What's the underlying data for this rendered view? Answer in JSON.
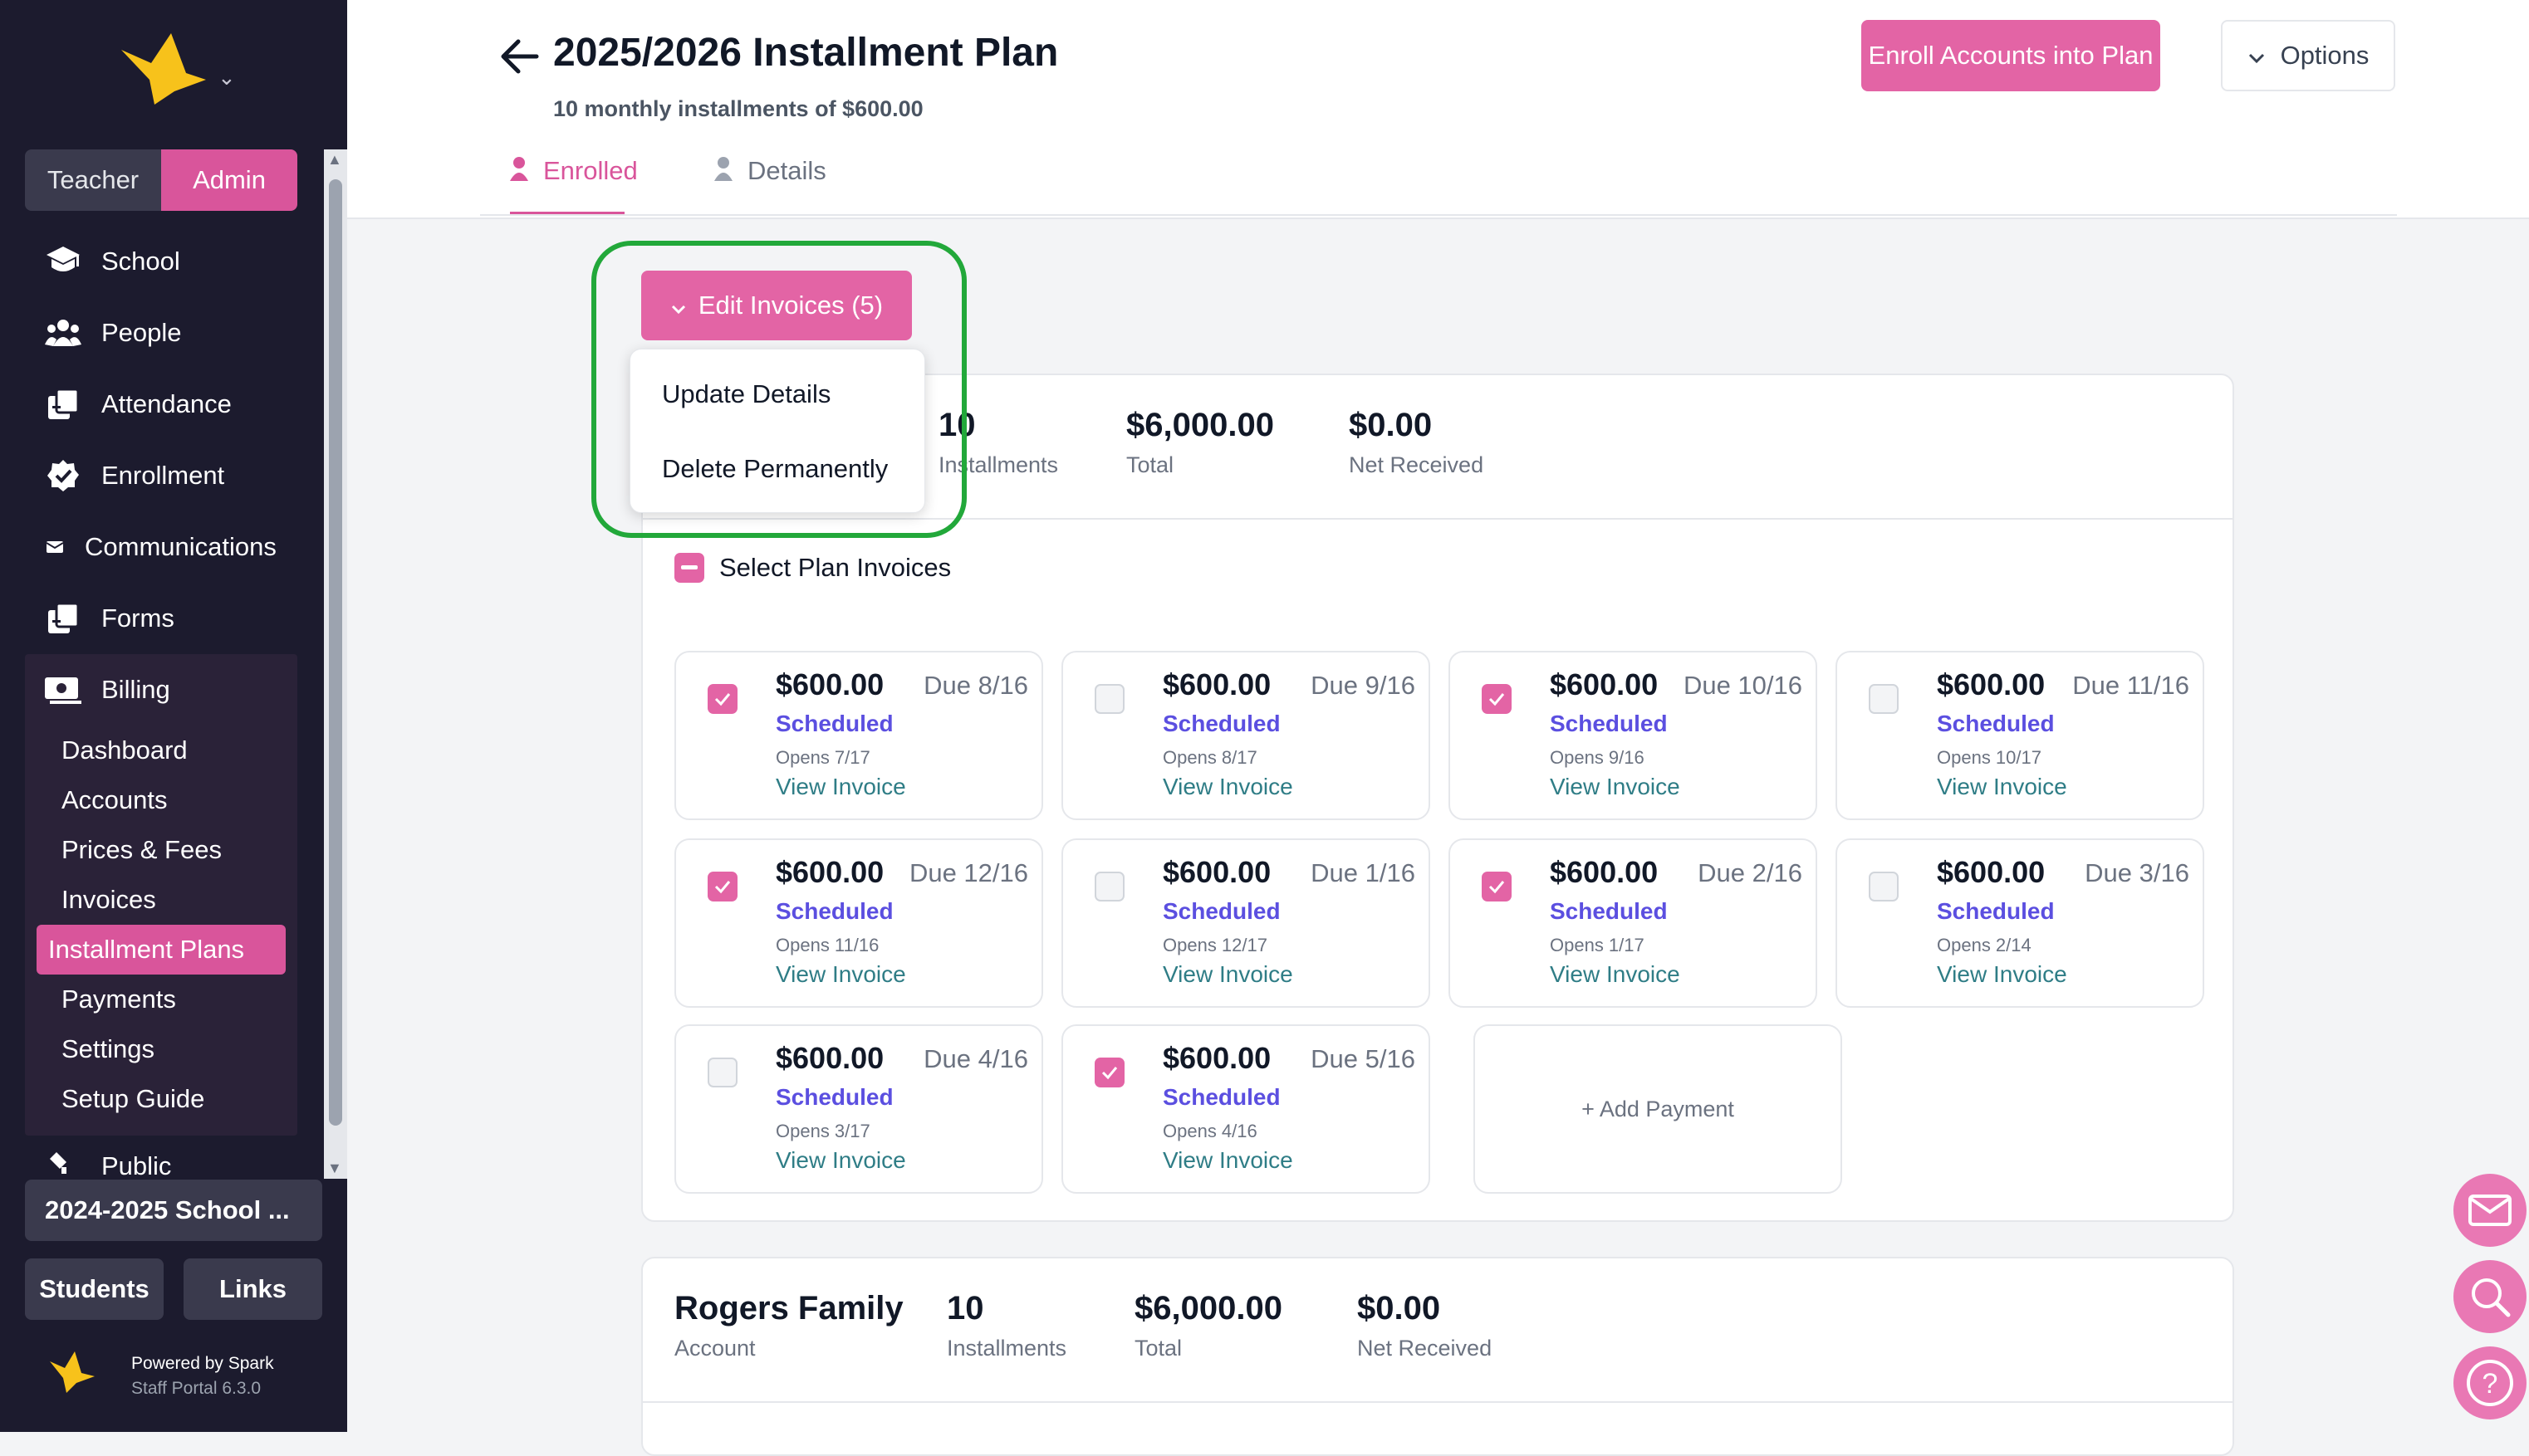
{
  "sidebar": {
    "roles": [
      "Teacher",
      "Admin"
    ],
    "nav": [
      {
        "label": "School",
        "icon": "school-icon"
      },
      {
        "label": "People",
        "icon": "people-icon"
      },
      {
        "label": "Attendance",
        "icon": "attendance-icon"
      },
      {
        "label": "Enrollment",
        "icon": "enrollment-icon"
      },
      {
        "label": "Communications",
        "icon": "communications-icon"
      },
      {
        "label": "Forms",
        "icon": "forms-icon"
      }
    ],
    "billing": {
      "label": "Billing",
      "items": [
        "Dashboard",
        "Accounts",
        "Prices & Fees",
        "Invoices",
        "Installment Plans",
        "Payments",
        "Settings",
        "Setup Guide"
      ],
      "active": "Installment Plans"
    },
    "public_label": "Public",
    "school_year": "2024-2025 School ...",
    "bottom_buttons": [
      "Students",
      "Links"
    ],
    "powered_by": "Powered by Spark",
    "version": "Staff Portal 6.3.0",
    "accent_color": "#d9559b"
  },
  "header": {
    "title": "2025/2026 Installment Plan",
    "subtitle": "10 monthly installments of $600.00",
    "enroll_button": "Enroll Accounts into Plan",
    "options_button": "Options",
    "tabs": [
      "Enrolled",
      "Details"
    ],
    "active_tab": "Enrolled"
  },
  "edit_menu": {
    "button_label": "Edit Invoices (5)",
    "items": [
      "Update Details",
      "Delete Permanently"
    ]
  },
  "plan_card": {
    "stats": [
      {
        "value": "10",
        "label": "Installments"
      },
      {
        "value": "$6,000.00",
        "label": "Total"
      },
      {
        "value": "$0.00",
        "label": "Net Received"
      }
    ],
    "select_all_label": "Select Plan Invoices",
    "invoices": [
      {
        "amount": "$600.00",
        "due": "Due 8/16",
        "status": "Scheduled",
        "opens": "Opens 7/17",
        "link": "View Invoice",
        "checked": true
      },
      {
        "amount": "$600.00",
        "due": "Due 9/16",
        "status": "Scheduled",
        "opens": "Opens 8/17",
        "link": "View Invoice",
        "checked": false
      },
      {
        "amount": "$600.00",
        "due": "Due 10/16",
        "status": "Scheduled",
        "opens": "Opens 9/16",
        "link": "View Invoice",
        "checked": true
      },
      {
        "amount": "$600.00",
        "due": "Due 11/16",
        "status": "Scheduled",
        "opens": "Opens 10/17",
        "link": "View Invoice",
        "checked": false
      },
      {
        "amount": "$600.00",
        "due": "Due 12/16",
        "status": "Scheduled",
        "opens": "Opens 11/16",
        "link": "View Invoice",
        "checked": true
      },
      {
        "amount": "$600.00",
        "due": "Due 1/16",
        "status": "Scheduled",
        "opens": "Opens 12/17",
        "link": "View Invoice",
        "checked": false
      },
      {
        "amount": "$600.00",
        "due": "Due 2/16",
        "status": "Scheduled",
        "opens": "Opens 1/17",
        "link": "View Invoice",
        "checked": true
      },
      {
        "amount": "$600.00",
        "due": "Due 3/16",
        "status": "Scheduled",
        "opens": "Opens 2/14",
        "link": "View Invoice",
        "checked": false
      },
      {
        "amount": "$600.00",
        "due": "Due 4/16",
        "status": "Scheduled",
        "opens": "Opens 3/17",
        "link": "View Invoice",
        "checked": false
      },
      {
        "amount": "$600.00",
        "due": "Due 5/16",
        "status": "Scheduled",
        "opens": "Opens 4/16",
        "link": "View Invoice",
        "checked": true
      }
    ],
    "add_payment_label": "+ Add Payment"
  },
  "second_card": {
    "account_name": "Rogers Family",
    "account_label": "Account",
    "stats": [
      {
        "value": "10",
        "label": "Installments"
      },
      {
        "value": "$6,000.00",
        "label": "Total"
      },
      {
        "value": "$0.00",
        "label": "Net Received"
      }
    ]
  },
  "floating_buttons": [
    "mail-icon",
    "search-icon",
    "help-icon"
  ],
  "colors": {
    "pink": "#e364a5",
    "status_purple": "#5b4fe0",
    "link_teal": "#2f7d86",
    "highlight_green": "#22a83a"
  }
}
